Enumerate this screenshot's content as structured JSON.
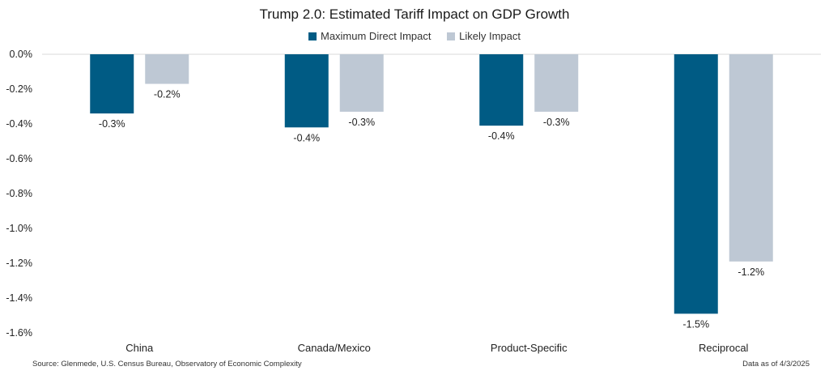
{
  "chart_data": {
    "type": "bar",
    "title": "Trump 2.0: Estimated Tariff Impact on GDP Growth",
    "categories": [
      "China",
      "Canada/Mexico",
      "Product-Specific",
      "Reciprocal"
    ],
    "series": [
      {
        "name": "Maximum Direct Impact",
        "color": "#005b84",
        "values": [
          -0.34,
          -0.42,
          -0.41,
          -1.49
        ],
        "labels": [
          "-0.3%",
          "-0.4%",
          "-0.4%",
          "-1.5%"
        ]
      },
      {
        "name": "Likely Impact",
        "color": "#bec8d4",
        "values": [
          -0.17,
          -0.33,
          -0.33,
          -1.19
        ],
        "labels": [
          "-0.2%",
          "-0.3%",
          "-0.3%",
          "-1.2%"
        ]
      }
    ],
    "yticks": [
      "0.0%",
      "-0.2%",
      "-0.4%",
      "-0.6%",
      "-0.8%",
      "-1.0%",
      "-1.2%",
      "-1.4%",
      "-1.6%"
    ],
    "ytick_values": [
      0,
      -0.2,
      -0.4,
      -0.6,
      -0.8,
      -1.0,
      -1.2,
      -1.4,
      -1.6
    ],
    "ylim": [
      -1.6,
      0
    ],
    "legend_position": "top-center",
    "grid": false
  },
  "footer": {
    "source": "Source: Glenmede, U.S. Census Bureau, Observatory of Economic Complexity",
    "date": "Data as of 4/3/2025"
  }
}
